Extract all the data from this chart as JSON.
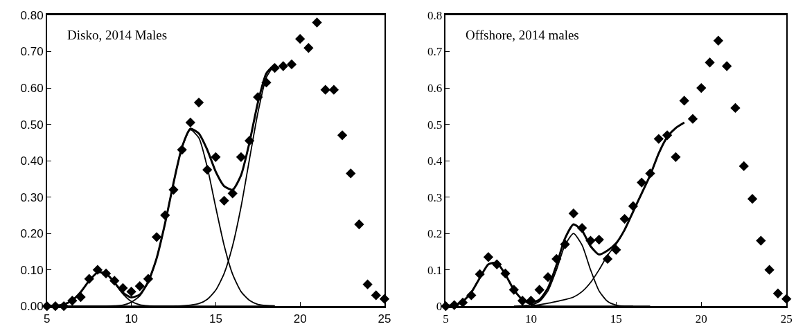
{
  "chart_data": [
    {
      "type": "scatter",
      "annotations": [
        "Disko, 2014 Males"
      ],
      "x": [
        5,
        5.5,
        6,
        6.5,
        7,
        7.5,
        8,
        8.5,
        9,
        9.5,
        10,
        10.5,
        11,
        11.5,
        12,
        12.5,
        13,
        13.5,
        14,
        14.5,
        15,
        15.5,
        16,
        16.5,
        17,
        17.5,
        18,
        18.5,
        19,
        19.5,
        20,
        20.5,
        21,
        21.5,
        22,
        22.5,
        23,
        23.5,
        24,
        24.5,
        25
      ],
      "xlim": [
        5,
        25
      ],
      "xticks": [
        5,
        10,
        15,
        20,
        25
      ],
      "ylim": [
        0,
        0.8
      ],
      "yticks": [
        {
          "value": 0,
          "label": "0.00"
        },
        {
          "value": 0.1,
          "label": "0.10"
        },
        {
          "value": 0.2,
          "label": "0.20"
        },
        {
          "value": 0.3,
          "label": "0.30"
        },
        {
          "value": 0.4,
          "label": "0.40"
        },
        {
          "value": 0.5,
          "label": "0.50"
        },
        {
          "value": 0.6,
          "label": "0.60"
        },
        {
          "value": 0.7,
          "label": "0.70"
        },
        {
          "value": 0.8,
          "label": "0.80"
        }
      ],
      "series": [
        {
          "marker": "diamond",
          "color": "#000000",
          "values": [
            0,
            0,
            0,
            0.015,
            0.025,
            0.075,
            0.1,
            0.09,
            0.07,
            0.05,
            0.04,
            0.055,
            0.075,
            0.19,
            0.25,
            0.32,
            0.43,
            0.505,
            0.56,
            0.375,
            0.41,
            0.29,
            0.31,
            0.41,
            0.455,
            0.575,
            0.615,
            0.655,
            0.66,
            0.665,
            0.735,
            0.71,
            0.78,
            0.595,
            0.595,
            0.47,
            0.365,
            0.225,
            0.06,
            0.03,
            0.02
          ]
        },
        {
          "type": "line",
          "color": "#000000",
          "x": [
            5,
            5.5,
            6,
            6.5,
            7,
            7.5,
            8,
            8.5,
            9,
            9.5,
            10,
            10.5,
            11,
            11.5,
            12,
            13,
            14,
            15,
            16,
            17,
            18,
            18.5
          ],
          "values": [
            0.002,
            0.001,
            0.005,
            0.016,
            0.039,
            0.07,
            0.093,
            0.09,
            0.064,
            0.034,
            0.013,
            0.004,
            0.001,
            0,
            0,
            0,
            0,
            0,
            0,
            0,
            0,
            0
          ]
        },
        {
          "type": "line",
          "color": "#000000",
          "x": [
            5,
            6,
            7,
            8,
            8.5,
            9,
            9.5,
            10,
            10.5,
            11,
            11.5,
            12,
            12.5,
            13,
            13.5,
            14,
            14.5,
            15,
            15.5,
            16,
            16.5,
            17,
            17.5,
            18,
            18.5
          ],
          "values": [
            0,
            0,
            0,
            0,
            0,
            0.001,
            0.003,
            0.011,
            0.028,
            0.066,
            0.132,
            0.228,
            0.339,
            0.436,
            0.485,
            0.463,
            0.382,
            0.272,
            0.167,
            0.088,
            0.04,
            0.016,
            0.005,
            0.002,
            0.001
          ]
        },
        {
          "type": "line",
          "color": "#000000",
          "x": [
            5,
            6,
            7,
            8,
            9,
            10,
            11,
            12,
            12.5,
            13,
            13.5,
            14,
            14.5,
            15,
            15.5,
            16,
            16.5,
            17,
            17.5,
            18,
            18.5
          ],
          "values": [
            0,
            0,
            0,
            0,
            0,
            0,
            0,
            0,
            0,
            0.001,
            0.003,
            0.007,
            0.019,
            0.044,
            0.09,
            0.166,
            0.273,
            0.404,
            0.532,
            0.629,
            0.665
          ]
        },
        {
          "type": "line",
          "color": "#000000",
          "x": [
            5,
            5.5,
            6,
            6.5,
            7,
            7.5,
            8,
            8.5,
            9,
            9.5,
            10,
            10.5,
            11,
            11.5,
            12,
            12.5,
            13,
            13.5,
            14,
            14.5,
            15,
            15.5,
            16,
            16.5,
            17,
            17.5,
            18,
            18.5
          ],
          "values": [
            0.002,
            0.001,
            0.005,
            0.016,
            0.039,
            0.07,
            0.093,
            0.09,
            0.065,
            0.037,
            0.024,
            0.032,
            0.067,
            0.132,
            0.228,
            0.339,
            0.437,
            0.488,
            0.475,
            0.43,
            0.37,
            0.33,
            0.32,
            0.36,
            0.45,
            0.56,
            0.64,
            0.665
          ]
        }
      ]
    },
    {
      "type": "scatter",
      "annotations": [
        "Offshore, 2014 males"
      ],
      "x": [
        5,
        5.5,
        6,
        6.5,
        7,
        7.5,
        8,
        8.5,
        9,
        9.5,
        10,
        10.5,
        11,
        11.5,
        12,
        12.5,
        13,
        13.5,
        14,
        14.5,
        15,
        15.5,
        16,
        16.5,
        17,
        17.5,
        18,
        18.5,
        19,
        19.5,
        20,
        20.5,
        21,
        21.5,
        22,
        22.5,
        23,
        23.5,
        24,
        24.5,
        25
      ],
      "xlim": [
        5,
        25
      ],
      "xticks": [
        5,
        10,
        15,
        20,
        25
      ],
      "ylim": [
        0,
        0.8
      ],
      "yticks": [
        0,
        0.1,
        0.2,
        0.3,
        0.4,
        0.5,
        0.6,
        0.7,
        0.8
      ],
      "series": [
        {
          "marker": "diamond",
          "color": "#000000",
          "values": [
            0,
            0.003,
            0.01,
            0.03,
            0.088,
            0.135,
            0.115,
            0.09,
            0.045,
            0.015,
            0.015,
            0.045,
            0.08,
            0.13,
            0.17,
            0.255,
            0.215,
            0.18,
            0.183,
            0.13,
            0.155,
            0.24,
            0.275,
            0.34,
            0.365,
            0.46,
            0.47,
            0.41,
            0.565,
            0.515,
            0.6,
            0.67,
            0.73,
            0.66,
            0.545,
            0.385,
            0.295,
            0.18,
            0.1,
            0.035,
            0.02
          ]
        },
        {
          "type": "line",
          "color": "#000000",
          "x": [
            5,
            5.5,
            6,
            6.5,
            7,
            7.5,
            8,
            8.5,
            9,
            9.5,
            10,
            10.5,
            11,
            12,
            13,
            14,
            15,
            16
          ],
          "values": [
            0.001,
            0.003,
            0.013,
            0.038,
            0.078,
            0.115,
            0.119,
            0.087,
            0.045,
            0.017,
            0.004,
            0.001,
            0,
            0,
            0,
            0,
            0,
            0
          ]
        },
        {
          "type": "line",
          "color": "#000000",
          "x": [
            9,
            9.5,
            10,
            10.5,
            11,
            11.5,
            12,
            12.5,
            13,
            13.5,
            14,
            14.5,
            15,
            15.5,
            16,
            17
          ],
          "values": [
            0,
            0.001,
            0.003,
            0.013,
            0.042,
            0.1,
            0.168,
            0.2,
            0.168,
            0.1,
            0.042,
            0.013,
            0.003,
            0,
            0,
            0
          ]
        },
        {
          "type": "line",
          "color": "#000000",
          "x": [
            10,
            10.5,
            11,
            11.5,
            12,
            12.5,
            13,
            13.5,
            14,
            14.5,
            15,
            15.5,
            16,
            16.5,
            17,
            17.5,
            18,
            18.5,
            19
          ],
          "values": [
            0.002,
            0.004,
            0.008,
            0.013,
            0.018,
            0.025,
            0.04,
            0.065,
            0.1,
            0.14,
            0.17,
            0.21,
            0.26,
            0.31,
            0.36,
            0.42,
            0.465,
            0.49,
            0.505
          ]
        },
        {
          "type": "line",
          "color": "#000000",
          "x": [
            5,
            5.5,
            6,
            6.5,
            7,
            7.5,
            8,
            8.5,
            9,
            9.5,
            10,
            10.5,
            11,
            11.5,
            12,
            12.5,
            13,
            13.5,
            14,
            14.5,
            15,
            15.5,
            16,
            16.5,
            17,
            17.5,
            18,
            18.5,
            19
          ],
          "values": [
            0.001,
            0.003,
            0.013,
            0.038,
            0.078,
            0.115,
            0.119,
            0.087,
            0.045,
            0.018,
            0.009,
            0.018,
            0.05,
            0.113,
            0.186,
            0.225,
            0.208,
            0.165,
            0.142,
            0.153,
            0.173,
            0.21,
            0.26,
            0.31,
            0.36,
            0.42,
            0.465,
            0.49,
            0.505
          ]
        }
      ]
    }
  ]
}
